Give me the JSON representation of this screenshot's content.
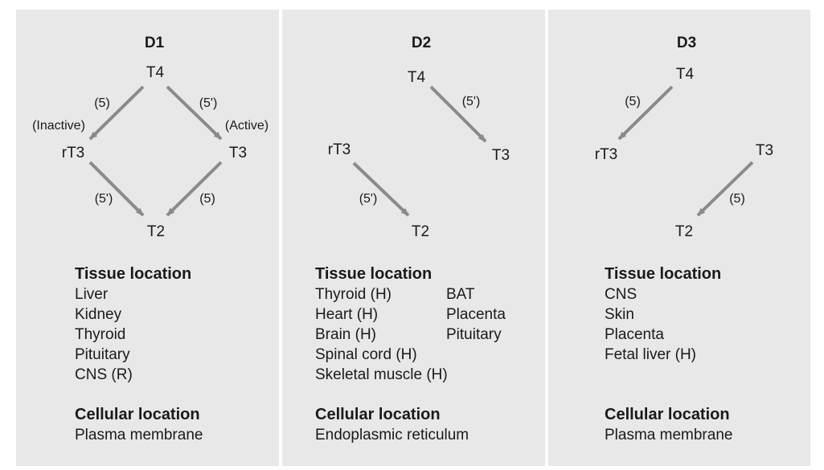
{
  "panels": [
    {
      "title": "D1",
      "nodes": {
        "top": "T4",
        "left": "rT3",
        "right": "T3",
        "bottom": "T2"
      },
      "arrow_labels": {
        "top_left": "(5)",
        "top_right": "(5')",
        "bottom_left": "(5')",
        "bottom_right": "(5)"
      },
      "side_labels": {
        "left": "(Inactive)",
        "right": "(Active)"
      },
      "tissue": {
        "title": "Tissue location",
        "col1": [
          "Liver",
          "Kidney",
          "Thyroid",
          "Pituitary",
          "CNS (R)"
        ]
      },
      "cellular": {
        "title": "Cellular location",
        "value": "Plasma membrane"
      }
    },
    {
      "title": "D2",
      "nodes": {
        "t4": "T4",
        "t3": "T3",
        "rt3": "rT3",
        "t2": "T2"
      },
      "arrow_labels": {
        "t4_t3": "(5')",
        "rt3_t2": "(5')"
      },
      "tissue": {
        "title": "Tissue location",
        "col1": [
          "Thyroid (H)",
          "Heart (H)",
          "Brain (H)",
          "Spinal cord (H)",
          "Skeletal muscle (H)"
        ],
        "col2": [
          "BAT",
          "Placenta",
          "Pituitary"
        ]
      },
      "cellular": {
        "title": "Cellular location",
        "value": "Endoplasmic reticulum"
      }
    },
    {
      "title": "D3",
      "nodes": {
        "t4": "T4",
        "rt3": "rT3",
        "t3": "T3",
        "t2": "T2"
      },
      "arrow_labels": {
        "t4_rt3": "(5)",
        "t3_t2": "(5)"
      },
      "tissue": {
        "title": "Tissue location",
        "col1": [
          "CNS",
          "Skin",
          "Placenta",
          "Fetal liver (H)"
        ]
      },
      "cellular": {
        "title": "Cellular location",
        "value": "Plasma membrane"
      }
    }
  ],
  "colors": {
    "panel_bg": "#e8e8e9",
    "arrow": "#8a8a8a",
    "text": "#1a1a1a"
  }
}
